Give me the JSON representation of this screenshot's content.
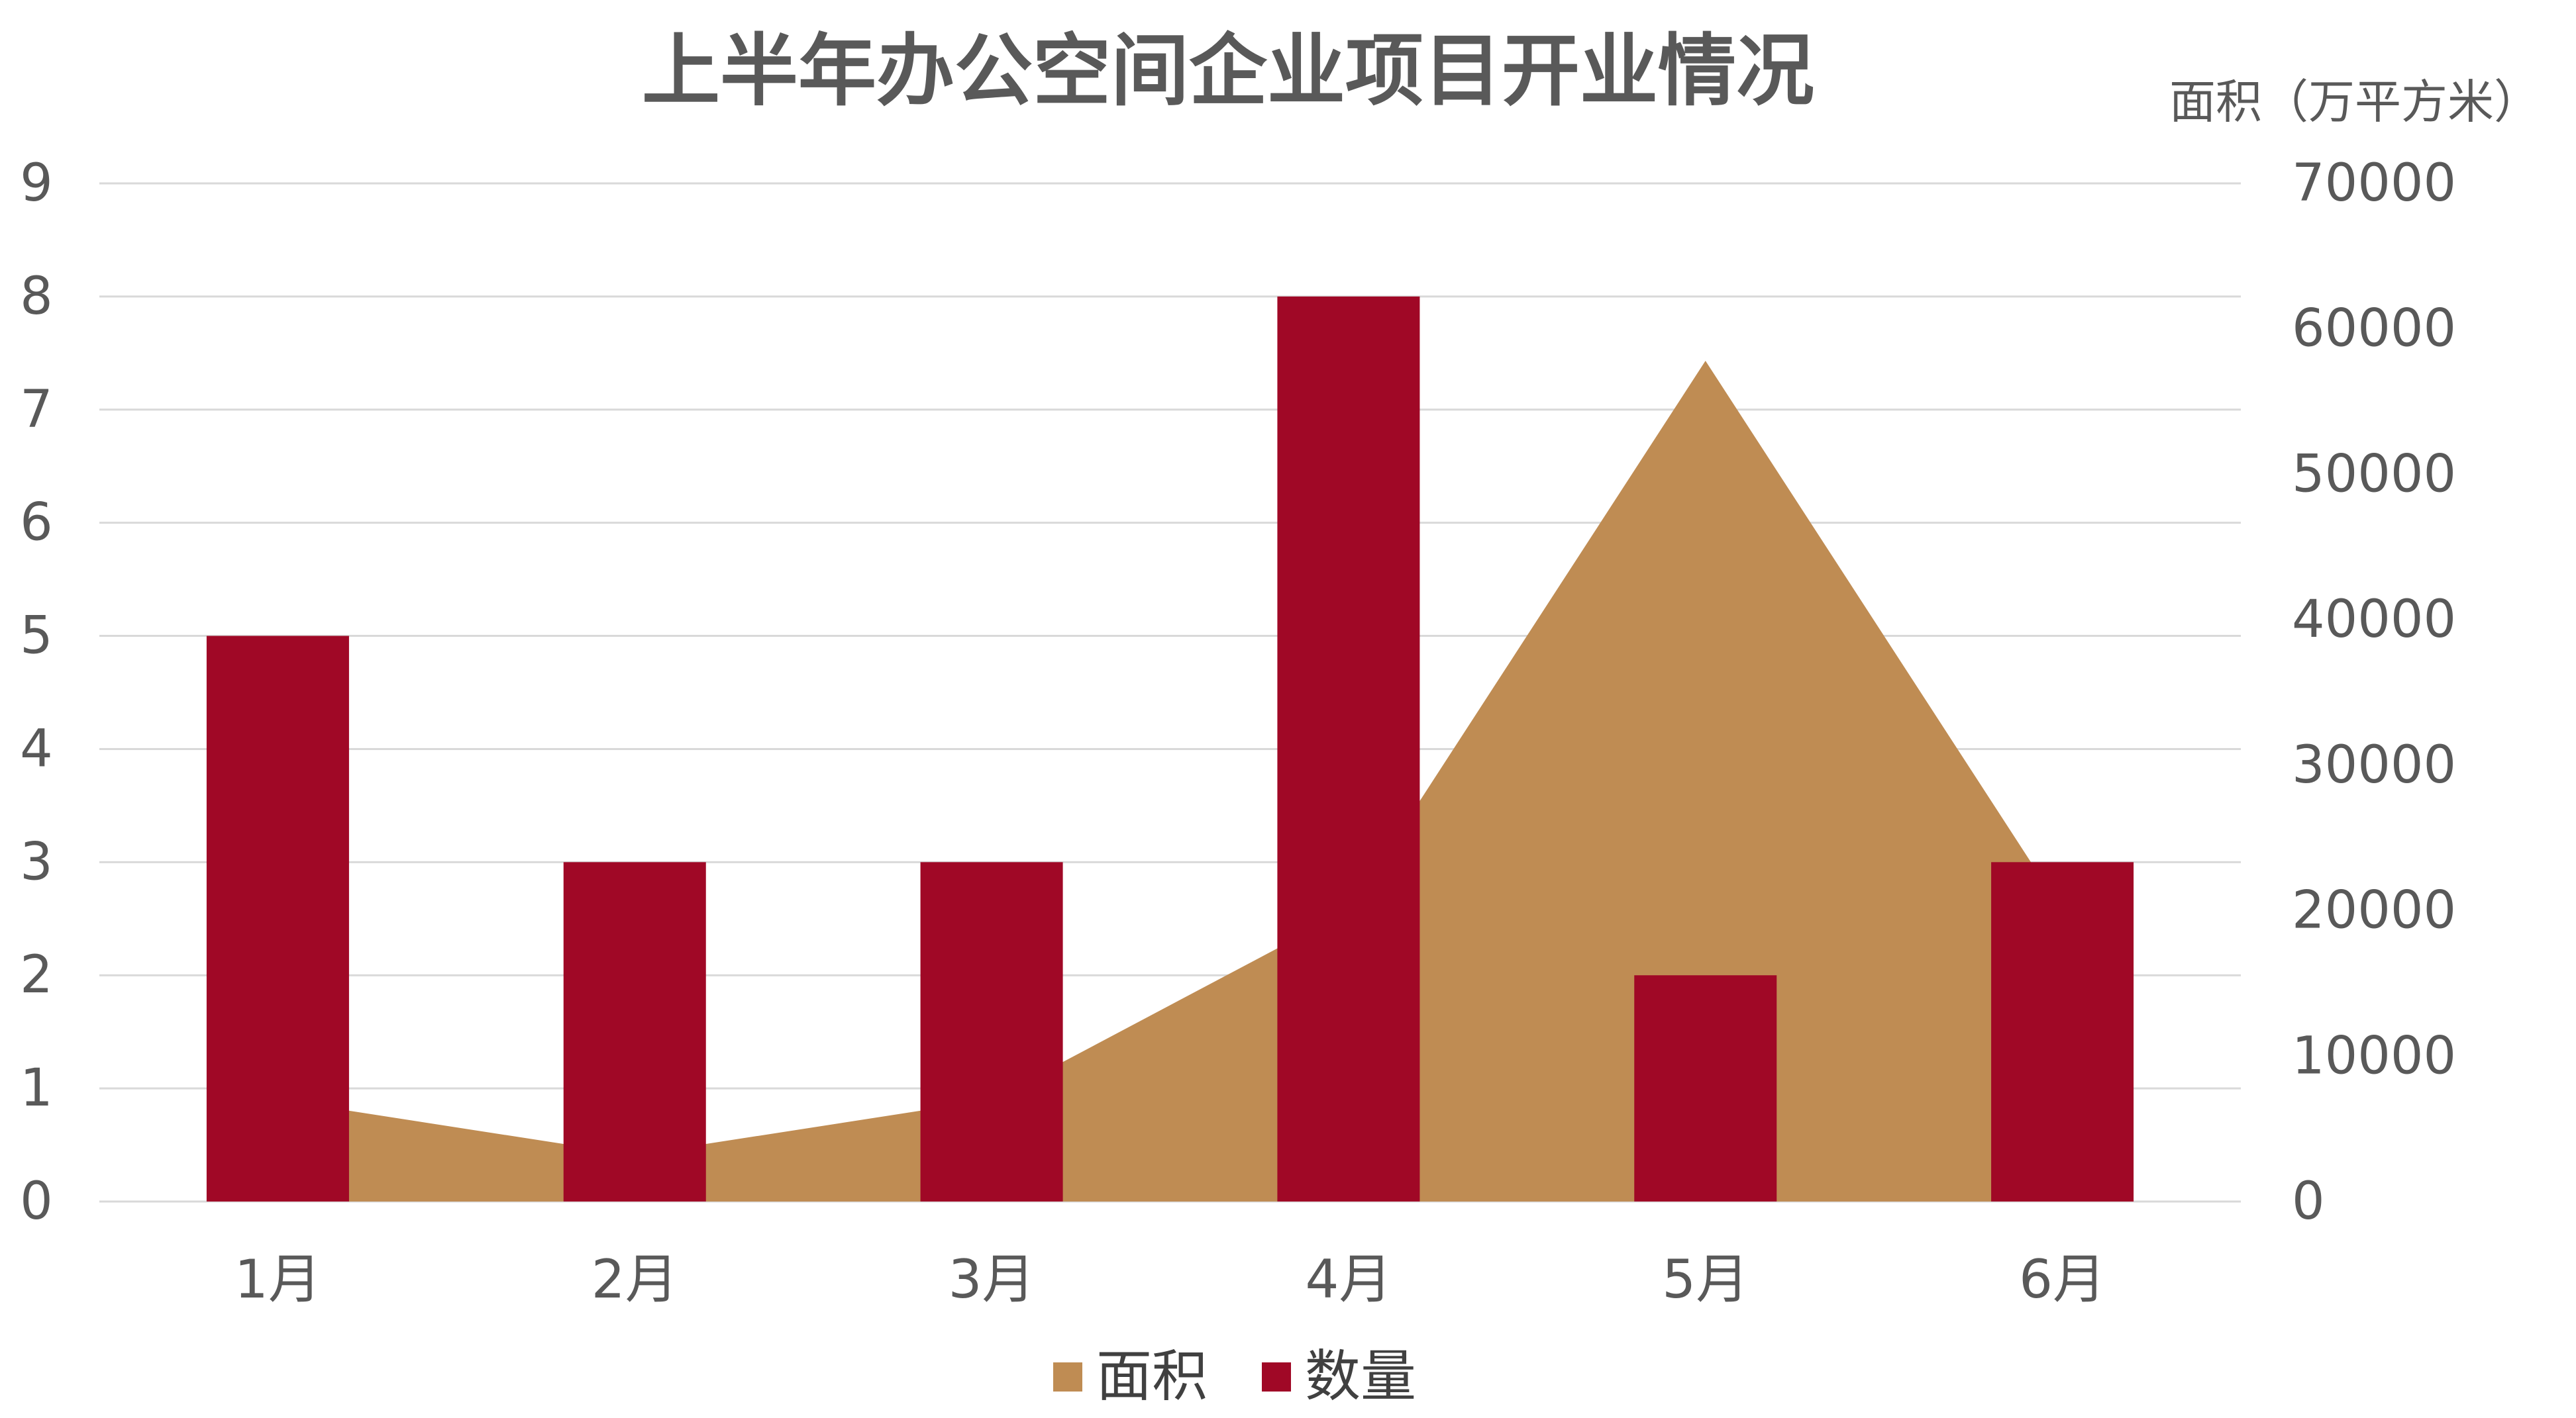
{
  "chart_data": {
    "type": "bar",
    "title": "上半年办公空间企业项目开业情况",
    "categories": [
      "1月",
      "2月",
      "3月",
      "4月",
      "5月",
      "6月"
    ],
    "series": [
      {
        "name": "面积",
        "type": "area",
        "axis": "right",
        "color": "#BF8C53",
        "values": [
          7000,
          3200,
          7000,
          20000,
          57800,
          20000
        ]
      },
      {
        "name": "数量",
        "type": "bar",
        "axis": "left",
        "color": "#A00826",
        "values": [
          5,
          3,
          3,
          8,
          2,
          3
        ]
      }
    ],
    "y_left": {
      "ylim": [
        0,
        9
      ],
      "ticks": [
        "0",
        "1",
        "2",
        "3",
        "4",
        "5",
        "6",
        "7",
        "8",
        "9"
      ]
    },
    "y_right": {
      "label": "面积（万平方米）",
      "ylim": [
        0,
        70000
      ],
      "ticks": [
        "0",
        "10000",
        "20000",
        "30000",
        "40000",
        "50000",
        "60000",
        "70000"
      ]
    },
    "grid": true,
    "gridline_color": "#d9d9d9",
    "legend_position": "bottom"
  }
}
